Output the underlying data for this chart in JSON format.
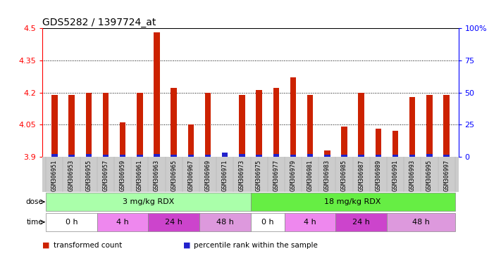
{
  "title": "GDS5282 / 1397724_at",
  "samples": [
    "GSM306951",
    "GSM306953",
    "GSM306955",
    "GSM306957",
    "GSM306959",
    "GSM306961",
    "GSM306963",
    "GSM306965",
    "GSM306967",
    "GSM306969",
    "GSM306971",
    "GSM306973",
    "GSM306975",
    "GSM306977",
    "GSM306979",
    "GSM306981",
    "GSM306983",
    "GSM306985",
    "GSM306987",
    "GSM306989",
    "GSM306991",
    "GSM306993",
    "GSM306995",
    "GSM306997"
  ],
  "red_values": [
    4.19,
    4.19,
    4.2,
    4.2,
    4.06,
    4.2,
    4.48,
    4.22,
    4.05,
    4.2,
    3.91,
    4.19,
    4.21,
    4.22,
    4.27,
    4.19,
    3.93,
    4.04,
    4.2,
    4.03,
    4.02,
    4.18,
    4.19,
    4.19
  ],
  "blue_values": [
    0.012,
    0.01,
    0.012,
    0.01,
    0.01,
    0.01,
    0.012,
    0.01,
    0.01,
    0.01,
    0.018,
    0.012,
    0.01,
    0.012,
    0.01,
    0.012,
    0.01,
    0.01,
    0.01,
    0.01,
    0.01,
    0.01,
    0.012,
    0.01
  ],
  "ymin": 3.9,
  "ymax": 4.5,
  "yticks": [
    3.9,
    4.05,
    4.2,
    4.35,
    4.5
  ],
  "ytick_labels": [
    "3.9",
    "4.05",
    "4.2",
    "4.35",
    "4.5"
  ],
  "right_yticks": [
    0,
    25,
    50,
    75,
    100
  ],
  "right_ytick_labels": [
    "0",
    "25",
    "50",
    "75",
    "100%"
  ],
  "bar_color_red": "#cc2200",
  "bar_color_blue": "#2222cc",
  "dose_groups": [
    {
      "label": "3 mg/kg RDX",
      "start": 0,
      "end": 12,
      "color": "#aaffaa"
    },
    {
      "label": "18 mg/kg RDX",
      "start": 12,
      "end": 24,
      "color": "#66ee44"
    }
  ],
  "time_groups": [
    {
      "label": "0 h",
      "start": 0,
      "end": 3,
      "color": "#ffffff"
    },
    {
      "label": "4 h",
      "start": 3,
      "end": 6,
      "color": "#ee88ee"
    },
    {
      "label": "24 h",
      "start": 6,
      "end": 9,
      "color": "#cc44cc"
    },
    {
      "label": "48 h",
      "start": 9,
      "end": 12,
      "color": "#dd99dd"
    },
    {
      "label": "0 h",
      "start": 12,
      "end": 14,
      "color": "#ffffff"
    },
    {
      "label": "4 h",
      "start": 14,
      "end": 17,
      "color": "#ee88ee"
    },
    {
      "label": "24 h",
      "start": 17,
      "end": 20,
      "color": "#cc44cc"
    },
    {
      "label": "48 h",
      "start": 20,
      "end": 24,
      "color": "#dd99dd"
    }
  ],
  "legend": [
    {
      "label": "transformed count",
      "color": "#cc2200"
    },
    {
      "label": "percentile rank within the sample",
      "color": "#2222cc"
    }
  ],
  "title_fontsize": 10,
  "bar_width": 0.35
}
